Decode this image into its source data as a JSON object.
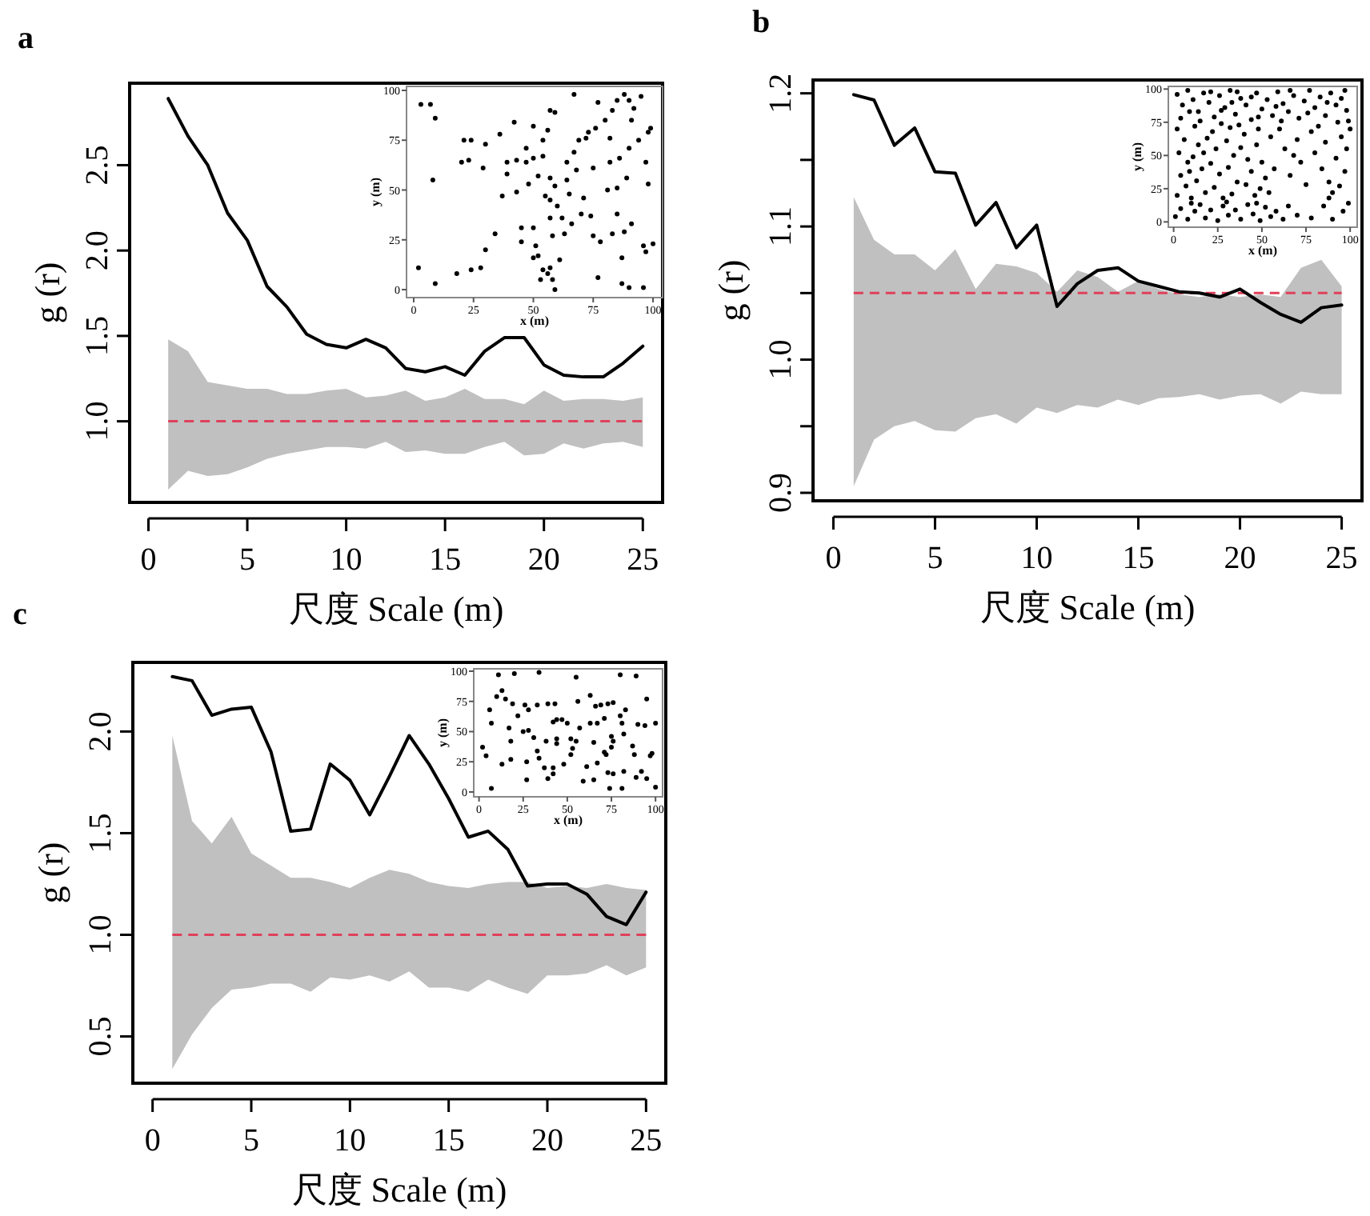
{
  "chart_data": [
    {
      "type": "line",
      "title": "a",
      "xlabel": "尺度 Scale (m)",
      "ylabel": "g (r)",
      "xlim": [
        -0.95,
        26
      ],
      "ylim": [
        0.525,
        2.98
      ],
      "xticks": [
        0,
        5,
        10,
        15,
        20,
        25
      ],
      "yticks": [
        {
          "value": 1,
          "label": "1.0"
        },
        {
          "value": 1.5,
          "label": "1.5"
        },
        {
          "value": 2,
          "label": "2.0"
        },
        {
          "value": 2.5,
          "label": "2.5"
        }
      ],
      "x": [
        1,
        2,
        3,
        4,
        5,
        6,
        7,
        8,
        9,
        10,
        11,
        12,
        13,
        14,
        15,
        16,
        17,
        18,
        19,
        20,
        21,
        22,
        23,
        24,
        25
      ],
      "series": [
        {
          "color": "#000000",
          "values": [
            2.89,
            2.67,
            2.5,
            2.22,
            2.06,
            1.79,
            1.67,
            1.51,
            1.45,
            1.43,
            1.48,
            1.43,
            1.31,
            1.29,
            1.32,
            1.27,
            1.41,
            1.49,
            1.49,
            1.33,
            1.27,
            1.26,
            1.26,
            1.34,
            1.44
          ],
          "upper": [
            1.48,
            1.41,
            1.23,
            1.21,
            1.19,
            1.19,
            1.16,
            1.16,
            1.18,
            1.19,
            1.14,
            1.15,
            1.18,
            1.12,
            1.14,
            1.19,
            1.13,
            1.13,
            1.1,
            1.18,
            1.12,
            1.13,
            1.13,
            1.12,
            1.14
          ],
          "lower": [
            0.6,
            0.71,
            0.68,
            0.69,
            0.73,
            0.78,
            0.81,
            0.83,
            0.85,
            0.85,
            0.84,
            0.88,
            0.82,
            0.83,
            0.81,
            0.81,
            0.85,
            0.88,
            0.8,
            0.81,
            0.87,
            0.84,
            0.87,
            0.88,
            0.85
          ]
        }
      ],
      "ref_lines": [
        {
          "axis": "y",
          "value": 1,
          "color": "#e0405a",
          "line_style": "dashed"
        }
      ]
    },
    {
      "type": "scatter",
      "xlabel": "x (m)",
      "ylabel": "y (m)",
      "xlim": [
        -3,
        104
      ],
      "ylim": [
        -4,
        102
      ],
      "xticks": [
        0,
        25,
        50,
        75,
        100
      ],
      "yticks": [
        0,
        25,
        50,
        75,
        100
      ],
      "marker": "circle",
      "series": [
        {
          "color": "#000000",
          "x": [
            3,
            7,
            9,
            8,
            2,
            9,
            18,
            24,
            28,
            30,
            34,
            20,
            21,
            24,
            23,
            29,
            30,
            36,
            37,
            39,
            39,
            42,
            43,
            43,
            45,
            45,
            47,
            47,
            48,
            50,
            50,
            50,
            51,
            52,
            52,
            54,
            54,
            55,
            56,
            57,
            57,
            57,
            57,
            58,
            59,
            59,
            60,
            54,
            56,
            57,
            58,
            59,
            53,
            50,
            61,
            62,
            63,
            64,
            64,
            65,
            66,
            67,
            67,
            68,
            69,
            70,
            71,
            72,
            73,
            74,
            75,
            75,
            76,
            77,
            77,
            78,
            80,
            81,
            82,
            82,
            83,
            83,
            85,
            85,
            86,
            87,
            87,
            88,
            88,
            89,
            90,
            90,
            91,
            91,
            92,
            94,
            95,
            96,
            96,
            97,
            98,
            98,
            99,
            100,
            97,
            90,
            85
          ],
          "values": [
            93,
            93,
            86,
            55,
            11,
            3,
            8,
            10,
            11,
            20,
            28,
            64,
            75,
            75,
            65,
            61,
            73,
            78,
            47,
            58,
            64,
            84,
            65,
            49,
            31,
            24,
            64,
            71,
            53,
            82,
            31,
            66,
            22,
            57,
            17,
            75,
            67,
            47,
            80,
            90,
            56,
            45,
            36,
            27,
            89,
            52,
            42,
            10,
            8,
            11,
            5,
            0,
            5,
            16,
            15,
            36,
            28,
            55,
            64,
            48,
            33,
            69,
            98,
            60,
            75,
            38,
            46,
            76,
            79,
            37,
            61,
            27,
            81,
            94,
            6,
            24,
            85,
            50,
            64,
            76,
            28,
            90,
            51,
            38,
            66,
            16,
            3,
            98,
            29,
            56,
            1,
            71,
            85,
            33,
            91,
            75,
            97,
            22,
            1,
            64,
            79,
            53,
            81,
            23,
            19,
            95,
            95
          ]
        }
      ]
    },
    {
      "type": "line",
      "title": "b",
      "xlabel": "尺度 Scale (m)",
      "ylabel": "g (r)",
      "xlim": [
        -1,
        26
      ],
      "ylim": [
        0.894,
        1.21
      ],
      "xticks": [
        0,
        5,
        10,
        15,
        20,
        25
      ],
      "yticks": [
        {
          "value": 0.9,
          "label": "0.9"
        },
        {
          "value": 0.95,
          "label": null
        },
        {
          "value": 1,
          "label": "1.0"
        },
        {
          "value": 1.05,
          "label": null
        },
        {
          "value": 1.1,
          "label": "1.1"
        },
        {
          "value": 1.15,
          "label": null
        },
        {
          "value": 1.2,
          "label": "1.2"
        }
      ],
      "x": [
        1,
        2,
        3,
        4,
        5,
        6,
        7,
        8,
        9,
        10,
        11,
        12,
        13,
        14,
        15,
        16,
        17,
        18,
        19,
        20,
        21,
        22,
        23,
        24,
        25
      ],
      "series": [
        {
          "color": "#000000",
          "values": [
            1.199,
            1.195,
            1.161,
            1.174,
            1.141,
            1.14,
            1.101,
            1.118,
            1.084,
            1.101,
            1.04,
            1.057,
            1.067,
            1.069,
            1.059,
            1.055,
            1.051,
            1.05,
            1.047,
            1.053,
            1.043,
            1.034,
            1.028,
            1.039,
            1.041
          ],
          "upper": [
            1.122,
            1.09,
            1.079,
            1.079,
            1.067,
            1.083,
            1.053,
            1.072,
            1.07,
            1.065,
            1.051,
            1.067,
            1.062,
            1.051,
            1.059,
            1.053,
            1.049,
            1.047,
            1.049,
            1.047,
            1.049,
            1.047,
            1.069,
            1.075,
            1.055
          ],
          "lower": [
            0.905,
            0.94,
            0.95,
            0.954,
            0.947,
            0.946,
            0.956,
            0.959,
            0.952,
            0.964,
            0.96,
            0.966,
            0.964,
            0.97,
            0.966,
            0.971,
            0.972,
            0.974,
            0.97,
            0.973,
            0.974,
            0.967,
            0.976,
            0.974,
            0.974
          ]
        }
      ],
      "ref_lines": [
        {
          "axis": "y",
          "value": 1.05,
          "color": "#e0405a",
          "line_style": "dashed"
        }
      ]
    },
    {
      "type": "scatter",
      "xlabel": "x (m)",
      "ylabel": "y (m)",
      "xlim": [
        -3,
        104
      ],
      "ylim": [
        -4,
        102
      ],
      "xticks": [
        0,
        25,
        50,
        75,
        100
      ],
      "yticks": [
        0,
        25,
        50,
        75,
        100
      ],
      "marker": "circle",
      "series": [
        {
          "color": "#000000",
          "x": [
            2,
            5,
            8,
            11,
            14,
            17,
            20,
            23,
            26,
            29,
            32,
            35,
            38,
            41,
            44,
            47,
            50,
            53,
            56,
            59,
            62,
            65,
            68,
            71,
            74,
            77,
            80,
            83,
            86,
            89,
            92,
            95,
            98,
            4,
            15,
            27,
            36,
            48,
            58,
            66,
            76,
            87,
            97,
            99,
            93,
            61,
            33,
            21,
            9,
            44,
            2,
            6,
            3,
            8,
            4,
            7,
            2,
            12,
            14,
            11,
            16,
            13,
            18,
            10,
            22,
            24,
            21,
            26,
            23,
            28,
            32,
            30,
            34,
            31,
            36,
            33,
            40,
            38,
            42,
            44,
            41,
            46,
            48,
            47,
            50,
            52,
            49,
            55,
            57,
            54,
            19,
            27,
            37,
            17,
            9,
            60,
            63,
            66,
            70,
            72,
            75,
            78,
            80,
            84,
            86,
            88,
            90,
            92,
            95,
            97,
            98,
            100,
            94,
            82,
            68,
            1,
            4,
            8,
            12,
            15,
            18,
            21,
            25,
            28,
            31,
            35,
            38,
            42,
            45,
            49,
            52,
            55,
            58,
            62,
            65,
            70,
            78,
            85,
            90,
            96,
            99,
            88,
            30,
            10,
            47
          ],
          "values": [
            96,
            88,
            99,
            92,
            83,
            97,
            90,
            79,
            95,
            86,
            99,
            81,
            93,
            88,
            77,
            97,
            85,
            92,
            80,
            98,
            89,
            83,
            95,
            78,
            91,
            99,
            86,
            94,
            80,
            97,
            88,
            93,
            84,
            78,
            76,
            84,
            98,
            79,
            87,
            99,
            82,
            90,
            99,
            76,
            75,
            76,
            90,
            98,
            83,
            94,
            70,
            62,
            52,
            45,
            35,
            27,
            20,
            72,
            58,
            49,
            40,
            31,
            22,
            18,
            68,
            55,
            44,
            36,
            26,
            18,
            71,
            61,
            50,
            41,
            30,
            21,
            66,
            56,
            47,
            38,
            28,
            20,
            70,
            58,
            45,
            33,
            25,
            64,
            40,
            22,
            63,
            74,
            73,
            52,
            38,
            70,
            55,
            35,
            62,
            45,
            28,
            68,
            52,
            40,
            60,
            30,
            22,
            48,
            64,
            38,
            55,
            70,
            27,
            72,
            50,
            4,
            10,
            2,
            8,
            13,
            3,
            9,
            1,
            12,
            5,
            9,
            2,
            13,
            6,
            1,
            11,
            4,
            8,
            2,
            12,
            5,
            3,
            12,
            2,
            8,
            14,
            18,
            15,
            14,
            14
          ]
        }
      ]
    },
    {
      "type": "line",
      "title": "c",
      "xlabel": "尺度 Scale (m)",
      "ylabel": "g (r)",
      "xlim": [
        -1,
        26
      ],
      "ylim": [
        0.27,
        2.34
      ],
      "xticks": [
        0,
        5,
        10,
        15,
        20,
        25
      ],
      "yticks": [
        {
          "value": 0.5,
          "label": "0.5"
        },
        {
          "value": 1,
          "label": "1.0"
        },
        {
          "value": 1.5,
          "label": "1.5"
        },
        {
          "value": 2,
          "label": "2.0"
        }
      ],
      "x": [
        1,
        2,
        3,
        4,
        5,
        6,
        7,
        8,
        9,
        10,
        11,
        12,
        13,
        14,
        15,
        16,
        17,
        18,
        19,
        20,
        21,
        22,
        23,
        24,
        25
      ],
      "series": [
        {
          "color": "#000000",
          "values": [
            2.27,
            2.25,
            2.08,
            2.11,
            2.12,
            1.9,
            1.51,
            1.52,
            1.84,
            1.76,
            1.59,
            1.78,
            1.98,
            1.84,
            1.67,
            1.48,
            1.51,
            1.42,
            1.24,
            1.25,
            1.25,
            1.2,
            1.09,
            1.05,
            1.21
          ],
          "upper": [
            1.98,
            1.56,
            1.45,
            1.58,
            1.4,
            1.34,
            1.28,
            1.28,
            1.26,
            1.23,
            1.28,
            1.32,
            1.3,
            1.26,
            1.24,
            1.23,
            1.25,
            1.26,
            1.26,
            1.23,
            1.24,
            1.23,
            1.25,
            1.23,
            1.22
          ],
          "lower": [
            0.34,
            0.51,
            0.64,
            0.73,
            0.74,
            0.76,
            0.76,
            0.72,
            0.79,
            0.78,
            0.8,
            0.77,
            0.82,
            0.74,
            0.74,
            0.72,
            0.78,
            0.74,
            0.71,
            0.8,
            0.8,
            0.81,
            0.85,
            0.8,
            0.84
          ]
        }
      ],
      "ref_lines": [
        {
          "axis": "y",
          "value": 1,
          "color": "#e0405a",
          "line_style": "dashed"
        }
      ]
    },
    {
      "type": "scatter",
      "xlabel": "x (m)",
      "ylabel": "y (m)",
      "xlim": [
        -3,
        104
      ],
      "ylim": [
        -4,
        102
      ],
      "xticks": [
        0,
        25,
        50,
        75,
        100
      ],
      "yticks": [
        0,
        25,
        50,
        75,
        100
      ],
      "marker": "circle",
      "series": [
        {
          "color": "#000000",
          "x": [
            11,
            20,
            34,
            55,
            80,
            89,
            13,
            15,
            10,
            19,
            26,
            33,
            39,
            43,
            6,
            22,
            28,
            56,
            63,
            66,
            69,
            73,
            76,
            83,
            95,
            7,
            17,
            25,
            28,
            42,
            44,
            47,
            50,
            57,
            63,
            67,
            71,
            80,
            81,
            90,
            94,
            100,
            18,
            31,
            33,
            38,
            44,
            44,
            52,
            55,
            53,
            65,
            75,
            76,
            82,
            75,
            71,
            72,
            87,
            88,
            98,
            97,
            2,
            4,
            13,
            18,
            27,
            34,
            37,
            42,
            48,
            52,
            61,
            67,
            73,
            76,
            82,
            89,
            92,
            27,
            39,
            42,
            59,
            65,
            74,
            81,
            95,
            7,
            100
          ],
          "values": [
            97,
            98,
            99,
            95,
            97,
            96,
            84,
            77,
            79,
            73,
            72,
            72,
            73,
            73,
            68,
            63,
            68,
            75,
            80,
            71,
            72,
            73,
            74,
            68,
            77,
            57,
            53,
            50,
            51,
            58,
            60,
            60,
            57,
            53,
            57,
            57,
            61,
            63,
            57,
            56,
            55,
            57,
            42,
            45,
            34,
            42,
            44,
            40,
            44,
            42,
            36,
            41,
            46,
            42,
            48,
            37,
            33,
            31,
            38,
            31,
            32,
            30,
            37,
            30,
            23,
            27,
            25,
            28,
            20,
            20,
            23,
            31,
            21,
            24,
            16,
            15,
            17,
            12,
            17,
            10,
            11,
            15,
            9,
            10,
            3,
            3,
            11,
            3,
            4
          ]
        }
      ]
    }
  ]
}
